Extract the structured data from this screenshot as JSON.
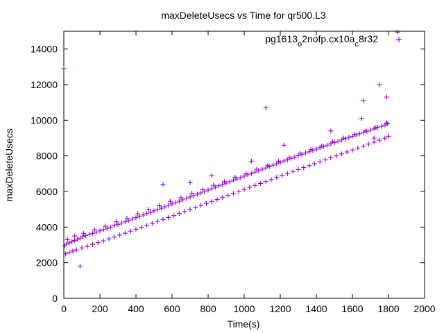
{
  "chart_data": {
    "type": "scatter",
    "title": "maxDeleteUsecs vs Time for qr500.L3",
    "xlabel": "Time(s)",
    "ylabel": "maxDeleteUsecs",
    "xlim": [
      0,
      2000
    ],
    "ylim": [
      0,
      15000
    ],
    "x_ticks": [
      "0",
      "200",
      "400",
      "600",
      "800",
      "1000",
      "1200",
      "1400",
      "1600",
      "1800",
      "2000"
    ],
    "y_ticks": [
      "0",
      "2000",
      "4000",
      "6000",
      "8000",
      "10000",
      "12000",
      "14000"
    ],
    "grid": false,
    "legend_position": "top-right",
    "marker": "+",
    "color": "#9400D3",
    "series": [
      {
        "name": "pg1613_o2nofp.cx10a_c8r32",
        "points": [
          [
            0,
            12900
          ],
          [
            5,
            2950
          ],
          [
            15,
            3050
          ],
          [
            30,
            3120
          ],
          [
            45,
            3180
          ],
          [
            60,
            3250
          ],
          [
            75,
            3320
          ],
          [
            90,
            3380
          ],
          [
            105,
            3450
          ],
          [
            120,
            3520
          ],
          [
            140,
            3580
          ],
          [
            160,
            3650
          ],
          [
            180,
            3720
          ],
          [
            200,
            3790
          ],
          [
            220,
            3860
          ],
          [
            240,
            3930
          ],
          [
            260,
            4000
          ],
          [
            280,
            4080
          ],
          [
            300,
            4150
          ],
          [
            320,
            4230
          ],
          [
            340,
            4300
          ],
          [
            360,
            4380
          ],
          [
            380,
            4450
          ],
          [
            400,
            4530
          ],
          [
            420,
            4600
          ],
          [
            440,
            4680
          ],
          [
            460,
            4760
          ],
          [
            480,
            4830
          ],
          [
            500,
            4910
          ],
          [
            520,
            4990
          ],
          [
            540,
            5060
          ],
          [
            560,
            5140
          ],
          [
            580,
            5220
          ],
          [
            600,
            5300
          ],
          [
            620,
            5380
          ],
          [
            640,
            5450
          ],
          [
            660,
            5530
          ],
          [
            680,
            5610
          ],
          [
            700,
            5690
          ],
          [
            720,
            5770
          ],
          [
            740,
            5850
          ],
          [
            760,
            5920
          ],
          [
            780,
            6000
          ],
          [
            800,
            6080
          ],
          [
            820,
            6160
          ],
          [
            840,
            6240
          ],
          [
            860,
            6320
          ],
          [
            880,
            6400
          ],
          [
            900,
            6470
          ],
          [
            920,
            6550
          ],
          [
            940,
            6630
          ],
          [
            960,
            6700
          ],
          [
            980,
            6780
          ],
          [
            1000,
            6860
          ],
          [
            1020,
            6940
          ],
          [
            1040,
            7010
          ],
          [
            1060,
            7090
          ],
          [
            1080,
            7170
          ],
          [
            1100,
            7250
          ],
          [
            1120,
            7320
          ],
          [
            1140,
            7400
          ],
          [
            1160,
            7480
          ],
          [
            1180,
            7550
          ],
          [
            1200,
            7630
          ],
          [
            1220,
            7710
          ],
          [
            1240,
            7780
          ],
          [
            1260,
            7860
          ],
          [
            1280,
            7930
          ],
          [
            1300,
            8010
          ],
          [
            1320,
            8080
          ],
          [
            1340,
            8160
          ],
          [
            1360,
            8230
          ],
          [
            1380,
            8310
          ],
          [
            1400,
            8380
          ],
          [
            1420,
            8460
          ],
          [
            1440,
            8530
          ],
          [
            1460,
            8600
          ],
          [
            1480,
            8680
          ],
          [
            1500,
            8750
          ],
          [
            1520,
            8820
          ],
          [
            1540,
            8890
          ],
          [
            1560,
            8960
          ],
          [
            1580,
            9030
          ],
          [
            1600,
            9100
          ],
          [
            1620,
            9170
          ],
          [
            1640,
            9240
          ],
          [
            1660,
            9310
          ],
          [
            1680,
            9380
          ],
          [
            1700,
            9450
          ],
          [
            1720,
            9520
          ],
          [
            1740,
            9590
          ],
          [
            1760,
            9660
          ],
          [
            1780,
            9730
          ],
          [
            1795,
            9800
          ],
          [
            10,
            2500
          ],
          [
            30,
            2580
          ],
          [
            50,
            2650
          ],
          [
            70,
            2720
          ],
          [
            100,
            2830
          ],
          [
            130,
            2920
          ],
          [
            160,
            3030
          ],
          [
            190,
            3130
          ],
          [
            220,
            3230
          ],
          [
            250,
            3340
          ],
          [
            280,
            3440
          ],
          [
            310,
            3550
          ],
          [
            340,
            3660
          ],
          [
            370,
            3770
          ],
          [
            400,
            3880
          ],
          [
            430,
            3990
          ],
          [
            460,
            4100
          ],
          [
            490,
            4210
          ],
          [
            520,
            4320
          ],
          [
            550,
            4430
          ],
          [
            580,
            4540
          ],
          [
            610,
            4650
          ],
          [
            640,
            4770
          ],
          [
            670,
            4880
          ],
          [
            700,
            4990
          ],
          [
            730,
            5100
          ],
          [
            760,
            5220
          ],
          [
            790,
            5330
          ],
          [
            820,
            5440
          ],
          [
            850,
            5550
          ],
          [
            880,
            5670
          ],
          [
            910,
            5780
          ],
          [
            940,
            5890
          ],
          [
            970,
            6000
          ],
          [
            1000,
            6110
          ],
          [
            1030,
            6230
          ],
          [
            1060,
            6340
          ],
          [
            1090,
            6450
          ],
          [
            1120,
            6560
          ],
          [
            1150,
            6670
          ],
          [
            1180,
            6790
          ],
          [
            1210,
            6900
          ],
          [
            1240,
            7010
          ],
          [
            1270,
            7120
          ],
          [
            1300,
            7230
          ],
          [
            1330,
            7340
          ],
          [
            1360,
            7450
          ],
          [
            1390,
            7560
          ],
          [
            1420,
            7670
          ],
          [
            1450,
            7780
          ],
          [
            1480,
            7890
          ],
          [
            1510,
            8000
          ],
          [
            1540,
            8110
          ],
          [
            1570,
            8220
          ],
          [
            1600,
            8330
          ],
          [
            1630,
            8440
          ],
          [
            1660,
            8550
          ],
          [
            1690,
            8660
          ],
          [
            1720,
            8770
          ],
          [
            1750,
            8880
          ],
          [
            1780,
            8990
          ],
          [
            1800,
            9100
          ],
          [
            20,
            3300
          ],
          [
            60,
            3500
          ],
          [
            110,
            3650
          ],
          [
            170,
            3850
          ],
          [
            230,
            4050
          ],
          [
            290,
            4300
          ],
          [
            350,
            4500
          ],
          [
            410,
            4750
          ],
          [
            470,
            5000
          ],
          [
            530,
            5200
          ],
          [
            590,
            5450
          ],
          [
            650,
            5650
          ],
          [
            710,
            5900
          ],
          [
            770,
            6100
          ],
          [
            830,
            6350
          ],
          [
            890,
            6550
          ],
          [
            950,
            6800
          ],
          [
            1010,
            7000
          ],
          [
            1070,
            7250
          ],
          [
            1130,
            7450
          ],
          [
            1190,
            7700
          ],
          [
            1250,
            7900
          ],
          [
            1310,
            8150
          ],
          [
            1370,
            8350
          ],
          [
            1430,
            8550
          ],
          [
            1490,
            8800
          ],
          [
            1550,
            9000
          ],
          [
            1610,
            9200
          ],
          [
            1670,
            9400
          ],
          [
            1730,
            9600
          ],
          [
            1790,
            9850
          ],
          [
            90,
            1800
          ],
          [
            550,
            6400
          ],
          [
            700,
            6500
          ],
          [
            820,
            6900
          ],
          [
            1040,
            7700
          ],
          [
            1120,
            10700
          ],
          [
            1220,
            8600
          ],
          [
            1480,
            9400
          ],
          [
            1650,
            10100
          ],
          [
            1660,
            11100
          ],
          [
            1720,
            9000
          ],
          [
            1750,
            12000
          ],
          [
            1790,
            11300
          ],
          [
            1850,
            14950
          ]
        ]
      }
    ]
  }
}
